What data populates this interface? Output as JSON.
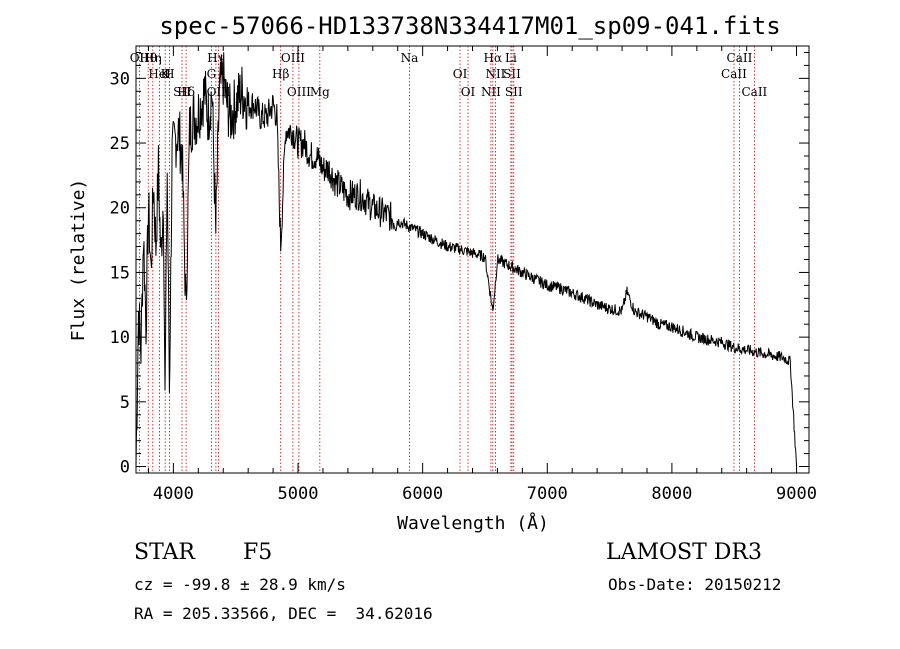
{
  "chart_data": {
    "type": "line",
    "title": "spec-57066-HD133738N334417M01_sp09-041.fits",
    "xlabel": "Wavelength (Å)",
    "ylabel": "Flux (relative)",
    "xlim": [
      3700,
      9100
    ],
    "ylim": [
      -0.5,
      32.5
    ],
    "x_ticks": [
      4000,
      5000,
      6000,
      7000,
      8000,
      9000
    ],
    "y_ticks": [
      0,
      5,
      10,
      15,
      20,
      25,
      30
    ],
    "grid": false,
    "series": [
      {
        "name": "flux",
        "x": [
          3700,
          3720,
          3740,
          3760,
          3780,
          3800,
          3820,
          3840,
          3860,
          3880,
          3900,
          3920,
          3933,
          3950,
          3968,
          3990,
          4010,
          4040,
          4070,
          4101,
          4130,
          4160,
          4190,
          4220,
          4250,
          4280,
          4310,
          4340,
          4370,
          4400,
          4430,
          4460,
          4500,
          4550,
          4600,
          4650,
          4700,
          4750,
          4800,
          4830,
          4861,
          4900,
          4950,
          5000,
          5050,
          5100,
          5150,
          5200,
          5250,
          5300,
          5400,
          5500,
          5600,
          5700,
          5800,
          5900,
          6000,
          6100,
          6200,
          6300,
          6400,
          6500,
          6563,
          6600,
          6700,
          6800,
          6900,
          7000,
          7100,
          7200,
          7300,
          7400,
          7500,
          7600,
          7640,
          7700,
          7800,
          7900,
          8000,
          8100,
          8200,
          8300,
          8400,
          8500,
          8600,
          8700,
          8800,
          8900,
          8950,
          9000
        ],
        "y": [
          0,
          12,
          9,
          18,
          11,
          20,
          15,
          22,
          17,
          23,
          16,
          21,
          5,
          23,
          6,
          24,
          25,
          26,
          24,
          12,
          26,
          27,
          27,
          28,
          29,
          27,
          29,
          18,
          29,
          30,
          28,
          27,
          28,
          29,
          28,
          28,
          27,
          27,
          28,
          27,
          17,
          26,
          26,
          25,
          25,
          24,
          24,
          23,
          23,
          22,
          21,
          21,
          20,
          19.5,
          19,
          18.5,
          18,
          17.5,
          17,
          16.8,
          16.5,
          16.2,
          12,
          16,
          15.5,
          15,
          14.5,
          14,
          13.8,
          13.4,
          13,
          12.5,
          12.2,
          12,
          13.5,
          12,
          11.6,
          11,
          10.8,
          10.4,
          10,
          9.8,
          9.6,
          9.2,
          9,
          8.8,
          8.6,
          8.4,
          8.1,
          0
        ]
      }
    ],
    "line_markers": [
      {
        "label": "Hθ",
        "wavelength": 3798
      },
      {
        "label": "K",
        "wavelength": 3934
      },
      {
        "label": "Hδ",
        "wavelength": 4102
      },
      {
        "label": "OII",
        "wavelength": 3727
      },
      {
        "label": "HeI",
        "wavelength": 3889
      },
      {
        "label": "SII",
        "wavelength": 4069
      },
      {
        "label": "Hη",
        "wavelength": 3835
      },
      {
        "label": "H",
        "wavelength": 3968
      },
      {
        "label": "OIII",
        "wavelength": 4363
      },
      {
        "label": "Hγ",
        "wavelength": 4341
      },
      {
        "label": "G",
        "wavelength": 4305
      },
      {
        "label": "OIII",
        "wavelength": 5007
      },
      {
        "label": "OIII",
        "wavelength": 4959
      },
      {
        "label": "Hβ",
        "wavelength": 4861
      },
      {
        "label": "Mg",
        "wavelength": 5175
      },
      {
        "label": "Na",
        "wavelength": 5894
      },
      {
        "label": "OI",
        "wavelength": 6300
      },
      {
        "label": "OI",
        "wavelength": 6364
      },
      {
        "label": "Hα",
        "wavelength": 6563
      },
      {
        "label": "SII",
        "wavelength": 6717
      },
      {
        "label": "NII",
        "wavelength": 6548
      },
      {
        "label": "Li",
        "wavelength": 6708
      },
      {
        "label": "NII",
        "wavelength": 6584
      },
      {
        "label": "SII",
        "wavelength": 6731
      },
      {
        "label": "CaII",
        "wavelength": 8542
      },
      {
        "label": "CaII",
        "wavelength": 8498
      },
      {
        "label": "CaII",
        "wavelength": 8662
      }
    ]
  },
  "info": {
    "object_type": "STAR",
    "subclass": "F5",
    "survey": "LAMOST DR3",
    "redshift_line": "cz = -99.8 ± 28.9 km/s",
    "obs_date": "Obs-Date: 20150212",
    "coords": "RA = 205.33566, DEC =  34.62016"
  }
}
